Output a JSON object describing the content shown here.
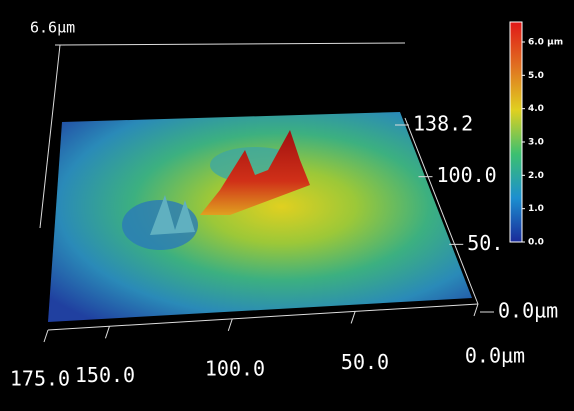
{
  "chart_data": {
    "type": "surface",
    "xlim": [
      0,
      175
    ],
    "xticks": [
      {
        "value": 175,
        "label": "175.0"
      },
      {
        "value": 150,
        "label": "150.0"
      },
      {
        "value": 100,
        "label": "100.0"
      },
      {
        "value": 50,
        "label": "50.0"
      },
      {
        "value": 0,
        "label": "0.0µm"
      }
    ],
    "ylim": [
      0,
      138.2
    ],
    "yticks": [
      138.2,
      {
        "value": 100,
        "label": "100.0"
      },
      {
        "value": 50,
        "label": "50."
      },
      {
        "value": 0,
        "label": "0.0µm"
      }
    ],
    "zlim": [
      0,
      6.6
    ],
    "zticks": [
      {
        "value": 6.6,
        "label": "6.6µm"
      }
    ],
    "colorbar": {
      "lim": [
        0,
        6.6
      ],
      "ticks": [
        {
          "value": 6,
          "label": "6.0 µm"
        },
        {
          "value": 5,
          "label": "5.0"
        },
        {
          "value": 4,
          "label": "4.0"
        },
        {
          "value": 3,
          "label": "3.0"
        },
        {
          "value": 2,
          "label": "2.0"
        },
        {
          "value": 1,
          "label": "1.0"
        },
        {
          "value": 0,
          "label": "0.0"
        }
      ],
      "colors": [
        "#1a2a9a",
        "#1c8fd0",
        "#3cc070",
        "#e0d020",
        "#e07020",
        "#e01818"
      ]
    }
  }
}
